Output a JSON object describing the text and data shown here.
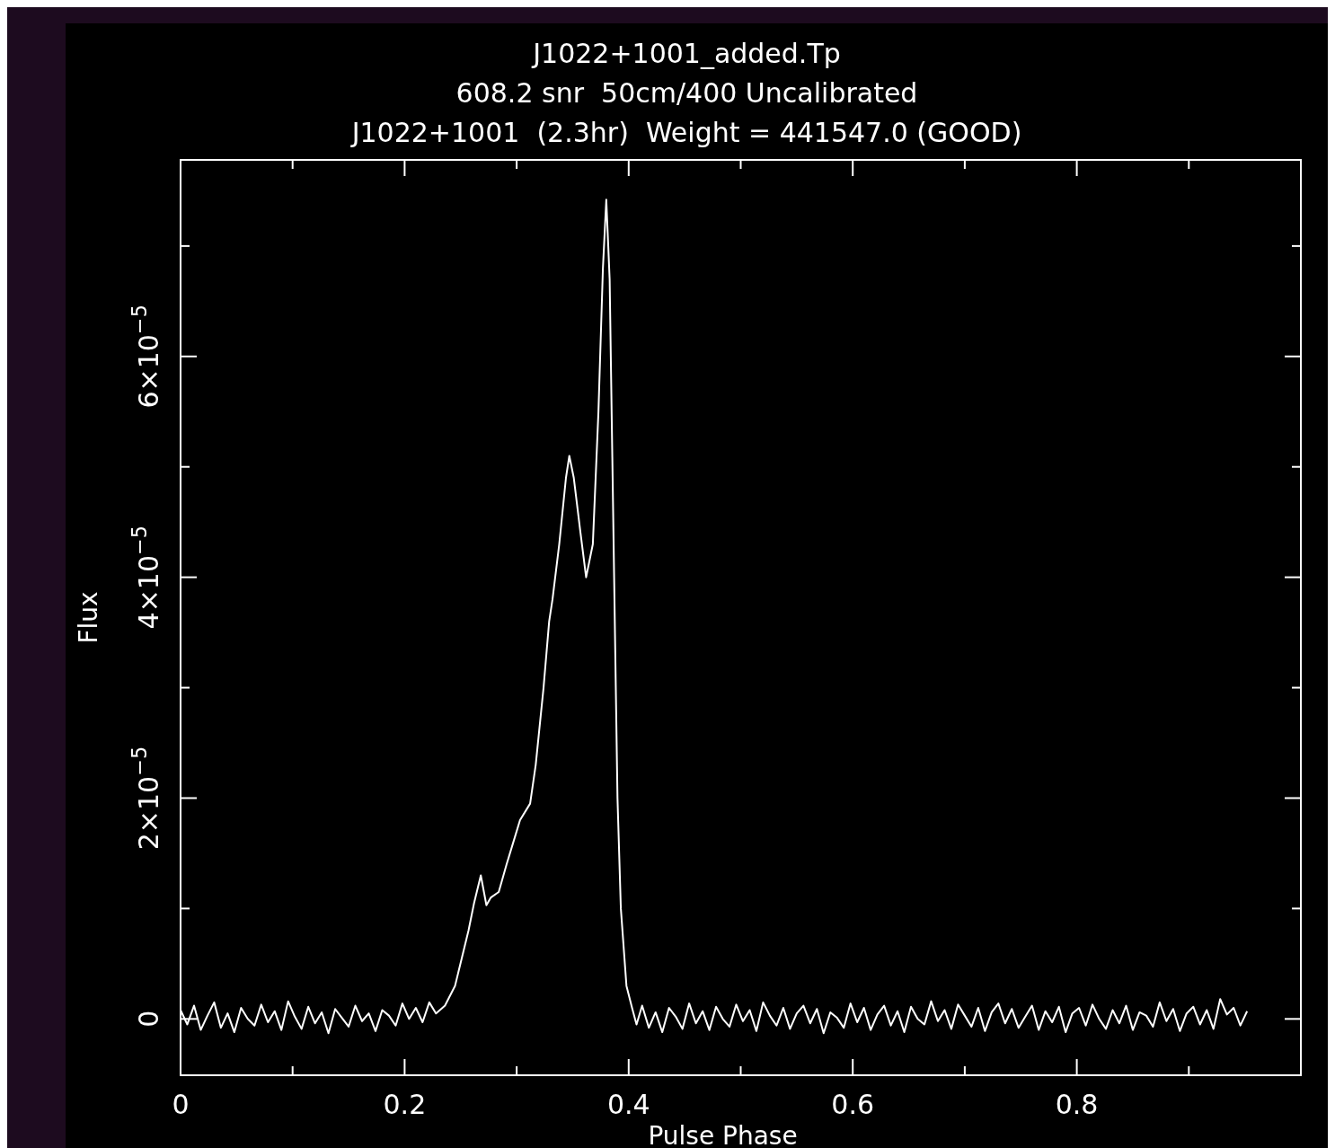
{
  "chart_data": {
    "type": "line",
    "title": "J1022+1001_added.Tp",
    "subtitle": "608.2 snr  50cm/400 Uncalibrated\nJ1022+1001  (2.3hr)  Weight = 441547.0 (GOOD)",
    "xlabel": "Pulse Phase",
    "ylabel": "Flux",
    "xlim": [
      0,
      1
    ],
    "ylim": [
      -5.1e-06,
      7.78e-05
    ],
    "xticks": [
      0,
      {
        "value": 0.1,
        "label": null
      },
      0.2,
      {
        "value": 0.3,
        "label": null
      },
      0.4,
      {
        "value": 0.5,
        "label": null
      },
      0.6,
      {
        "value": 0.7,
        "label": null
      },
      0.8,
      {
        "value": 0.9,
        "label": null
      }
    ],
    "yticks": [
      0,
      {
        "value": 1e-05,
        "label": null
      },
      {
        "value": 2e-05,
        "label": "2×10$^{−5}$"
      },
      {
        "value": 3e-05,
        "label": null
      },
      {
        "value": 4e-05,
        "label": "4×10$^{−5}$"
      },
      {
        "value": 5e-05,
        "label": null
      },
      {
        "value": 6e-05,
        "label": "6×10$^{−5}$"
      },
      {
        "value": 7e-05,
        "label": null
      }
    ],
    "grid": false,
    "series": [
      {
        "color": "#ffffff",
        "x": [
          0,
          0.006,
          0.012,
          0.018,
          0.024,
          0.03,
          0.036,
          0.042,
          0.048,
          0.054,
          0.06,
          0.066,
          0.072,
          0.078,
          0.084,
          0.09,
          0.096,
          0.102,
          0.108,
          0.114,
          0.12,
          0.126,
          0.132,
          0.138,
          0.144,
          0.15,
          0.156,
          0.162,
          0.168,
          0.174,
          0.18,
          0.186,
          0.192,
          0.198,
          0.204,
          0.21,
          0.216,
          0.222,
          0.228,
          0.236,
          0.245,
          0.251,
          0.257,
          0.262,
          0.268,
          0.273,
          0.277,
          0.284,
          0.291,
          0.297,
          0.303,
          0.312,
          0.317,
          0.324,
          0.329,
          0.332,
          0.338,
          0.344,
          0.347,
          0.351,
          0.357,
          0.362,
          0.368,
          0.373,
          0.377,
          0.38,
          0.383,
          0.387,
          0.39,
          0.393,
          0.398,
          0.403,
          0.407,
          0.412,
          0.418,
          0.424,
          0.43,
          0.436,
          0.442,
          0.448,
          0.454,
          0.46,
          0.466,
          0.472,
          0.478,
          0.484,
          0.49,
          0.496,
          0.502,
          0.508,
          0.514,
          0.52,
          0.526,
          0.532,
          0.538,
          0.544,
          0.55,
          0.556,
          0.562,
          0.568,
          0.574,
          0.58,
          0.586,
          0.592,
          0.598,
          0.604,
          0.61,
          0.616,
          0.622,
          0.628,
          0.634,
          0.64,
          0.646,
          0.652,
          0.658,
          0.664,
          0.67,
          0.676,
          0.682,
          0.688,
          0.694,
          0.7,
          0.706,
          0.712,
          0.718,
          0.724,
          0.73,
          0.736,
          0.742,
          0.748,
          0.754,
          0.76,
          0.766,
          0.772,
          0.778,
          0.784,
          0.79,
          0.796,
          0.802,
          0.808,
          0.814,
          0.82,
          0.826,
          0.832,
          0.838,
          0.844,
          0.85,
          0.856,
          0.862,
          0.868,
          0.874,
          0.88,
          0.886,
          0.892,
          0.898,
          0.904,
          0.91,
          0.916,
          0.922,
          0.928,
          0.934,
          0.94,
          0.946,
          0.952
        ],
        "values": [
          8e-07,
          -5e-07,
          1.2e-06,
          -1e-06,
          3e-07,
          1.5e-06,
          -8e-07,
          5e-07,
          -1.2e-06,
          1e-06,
          0.0,
          -6e-07,
          1.3e-06,
          -3e-07,
          7e-07,
          -1e-06,
          1.6e-06,
          2e-07,
          -9e-07,
          1.1e-06,
          -4e-07,
          6e-07,
          -1.3e-06,
          9e-07,
          1e-07,
          -7e-07,
          1.2e-06,
          -2e-07,
          5e-07,
          -1.1e-06,
          8e-07,
          3e-07,
          -6e-07,
          1.4e-06,
          0.0,
          1e-06,
          -3e-07,
          1.5e-06,
          5e-07,
          1.2e-06,
          3e-06,
          5.5e-06,
          8e-06,
          1.05e-05,
          1.3e-05,
          1.03e-05,
          1.1e-05,
          1.15e-05,
          1.4e-05,
          1.6e-05,
          1.8e-05,
          1.95e-05,
          2.3e-05,
          3e-05,
          3.6e-05,
          3.8e-05,
          4.3e-05,
          4.9e-05,
          5.1e-05,
          4.9e-05,
          4.4e-05,
          4e-05,
          4.3e-05,
          5.5e-05,
          6.8e-05,
          7.42e-05,
          6.7e-05,
          4e-05,
          2e-05,
          1e-05,
          3e-06,
          1e-06,
          -5e-07,
          1.2e-06,
          -8e-07,
          6e-07,
          -1.2e-06,
          1e-06,
          2e-07,
          -9e-07,
          1.4e-06,
          -4e-07,
          7e-07,
          -1e-06,
          1.1e-06,
          0.0,
          -7e-07,
          1.3e-06,
          -2e-07,
          8e-07,
          -1.1e-06,
          1.5e-06,
          3e-07,
          -6e-07,
          1e-06,
          -9e-07,
          5e-07,
          1.2e-06,
          -4e-07,
          9e-07,
          -1.3e-06,
          6e-07,
          1e-07,
          -8e-07,
          1.4e-06,
          -3e-07,
          1e-06,
          -1e-06,
          4e-07,
          1.2e-06,
          -6e-07,
          7e-07,
          -1.2e-06,
          1.1e-06,
          0.0,
          -5e-07,
          1.6e-06,
          -2e-07,
          8e-07,
          -9e-07,
          1.3e-06,
          3e-07,
          -7e-07,
          1e-06,
          -1.1e-06,
          6e-07,
          1.4e-06,
          -4e-07,
          9e-07,
          -8e-07,
          2e-07,
          1.2e-06,
          -1e-06,
          7e-07,
          -3e-07,
          1.1e-06,
          -1.2e-06,
          5e-07,
          1e-06,
          -6e-07,
          1.3e-06,
          0.0,
          -9e-07,
          8e-07,
          -4e-07,
          1.2e-06,
          -1e-06,
          6e-07,
          3e-07,
          -7e-07,
          1.5e-06,
          -2e-07,
          9e-07,
          -1.1e-06,
          5e-07,
          1.1e-06,
          -5e-07,
          8e-07,
          -9e-07,
          1.8e-06,
          4e-07,
          1e-06,
          -6e-07,
          7e-07
        ]
      }
    ]
  }
}
